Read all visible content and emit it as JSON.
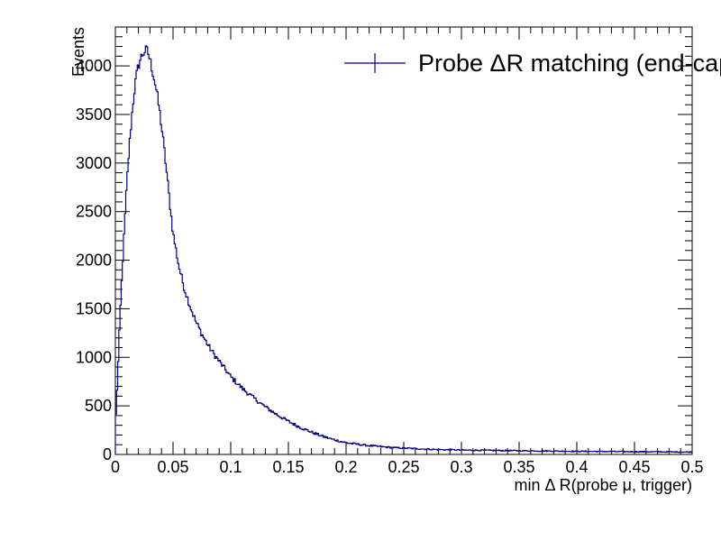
{
  "chart_data": {
    "type": "histogram",
    "xlabel": "min Δ R(probe μ, trigger)",
    "ylabel": "Events",
    "xlim": [
      0,
      0.5
    ],
    "ylim": [
      0,
      4400
    ],
    "grid": false,
    "legend_position": "top-right",
    "x_ticks": [
      "0",
      "0.05",
      "0.1",
      "0.15",
      "0.2",
      "0.25",
      "0.3",
      "0.35",
      "0.4",
      "0.45",
      "0.5"
    ],
    "y_ticks": [
      "0",
      "500",
      "1000",
      "1500",
      "2000",
      "2500",
      "3000",
      "3500",
      "4000"
    ],
    "series": [
      {
        "name": "Probe ΔR matching (end-cap)",
        "color": "#000080",
        "bin_edges_range": [
          0,
          0.5
        ],
        "curve_points": [
          [
            0.0,
            280
          ],
          [
            0.002,
            800
          ],
          [
            0.004,
            1400
          ],
          [
            0.006,
            1900
          ],
          [
            0.008,
            2350
          ],
          [
            0.01,
            2800
          ],
          [
            0.012,
            3150
          ],
          [
            0.014,
            3450
          ],
          [
            0.016,
            3700
          ],
          [
            0.018,
            3880
          ],
          [
            0.02,
            4000
          ],
          [
            0.022,
            4080
          ],
          [
            0.024,
            4130
          ],
          [
            0.026,
            4160
          ],
          [
            0.028,
            4150
          ],
          [
            0.03,
            4060
          ],
          [
            0.032,
            3960
          ],
          [
            0.034,
            3850
          ],
          [
            0.036,
            3720
          ],
          [
            0.038,
            3560
          ],
          [
            0.04,
            3380
          ],
          [
            0.042,
            3180
          ],
          [
            0.044,
            2960
          ],
          [
            0.046,
            2730
          ],
          [
            0.048,
            2500
          ],
          [
            0.05,
            2280
          ],
          [
            0.055,
            1940
          ],
          [
            0.06,
            1700
          ],
          [
            0.065,
            1520
          ],
          [
            0.07,
            1360
          ],
          [
            0.075,
            1240
          ],
          [
            0.08,
            1130
          ],
          [
            0.085,
            1040
          ],
          [
            0.09,
            960
          ],
          [
            0.095,
            880
          ],
          [
            0.1,
            800
          ],
          [
            0.11,
            680
          ],
          [
            0.12,
            580
          ],
          [
            0.13,
            490
          ],
          [
            0.14,
            410
          ],
          [
            0.15,
            340
          ],
          [
            0.16,
            280
          ],
          [
            0.17,
            230
          ],
          [
            0.18,
            185
          ],
          [
            0.19,
            150
          ],
          [
            0.2,
            120
          ],
          [
            0.22,
            90
          ],
          [
            0.24,
            70
          ],
          [
            0.26,
            60
          ],
          [
            0.28,
            50
          ],
          [
            0.3,
            45
          ],
          [
            0.35,
            38
          ],
          [
            0.4,
            32
          ],
          [
            0.45,
            28
          ],
          [
            0.5,
            25
          ]
        ]
      }
    ]
  }
}
